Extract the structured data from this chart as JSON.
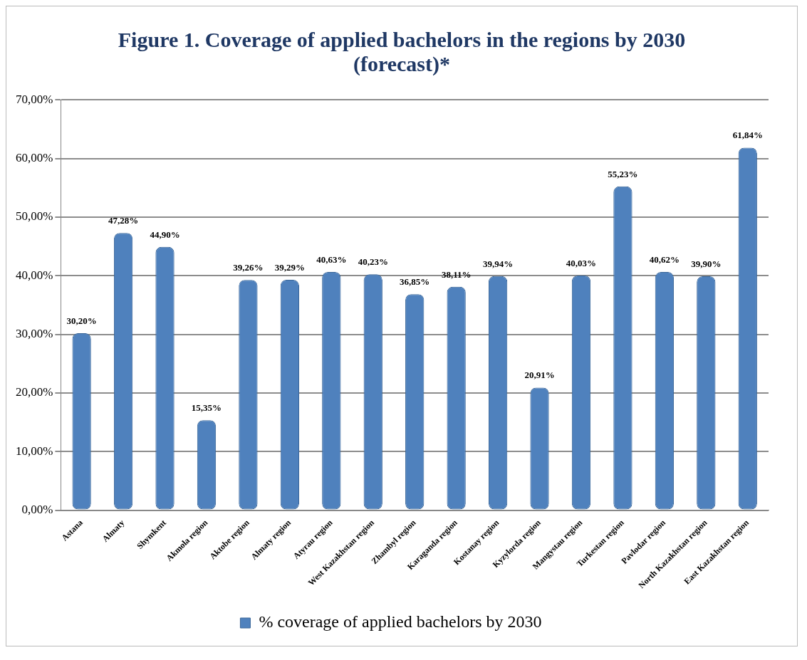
{
  "chart_data": {
    "type": "bar",
    "title": "Figure 1. Coverage of applied bachelors in the regions by 2030 (forecast)*",
    "categories": [
      "Astana",
      "Almaty",
      "Shymkent",
      "Akmola region",
      "Aktobe region",
      "Almaty region",
      "Atyrau region",
      "West Kazakhstan region",
      "Zhambyl region",
      "Karaganda region",
      "Kostanay region",
      "Kyzylorda region",
      "Mangystau region",
      "Turkestan region",
      "Pavlodar region",
      "North Kazakhstan region",
      "East Kazakhstan region"
    ],
    "series": [
      {
        "name": "% coverage of applied bachelors by 2030",
        "color": "#4f81bd",
        "values": [
          30.2,
          47.28,
          44.9,
          15.35,
          39.26,
          39.29,
          40.63,
          40.23,
          36.85,
          38.11,
          39.94,
          20.91,
          40.03,
          55.23,
          40.62,
          39.9,
          61.84
        ],
        "value_labels": [
          "30,20%",
          "47,28%",
          "44,90%",
          "15,35%",
          "39,26%",
          "39,29%",
          "40,63%",
          "40,23%",
          "36,85%",
          "38,11%",
          "39,94%",
          "20,91%",
          "40,03%",
          "55,23%",
          "40,62%",
          "39,90%",
          "61,84%"
        ]
      }
    ],
    "ylim": [
      0,
      70
    ],
    "yticks": [
      {
        "value": 0,
        "label": "0,00%"
      },
      {
        "value": 10,
        "label": "10,00%"
      },
      {
        "value": 20,
        "label": "20,00%"
      },
      {
        "value": 30,
        "label": "30,00%"
      },
      {
        "value": 40,
        "label": "40,00%"
      },
      {
        "value": 50,
        "label": "50,00%"
      },
      {
        "value": 60,
        "label": "60,00%"
      },
      {
        "value": 70,
        "label": "70,00%"
      }
    ],
    "grid": "y",
    "legend": "bottom"
  }
}
